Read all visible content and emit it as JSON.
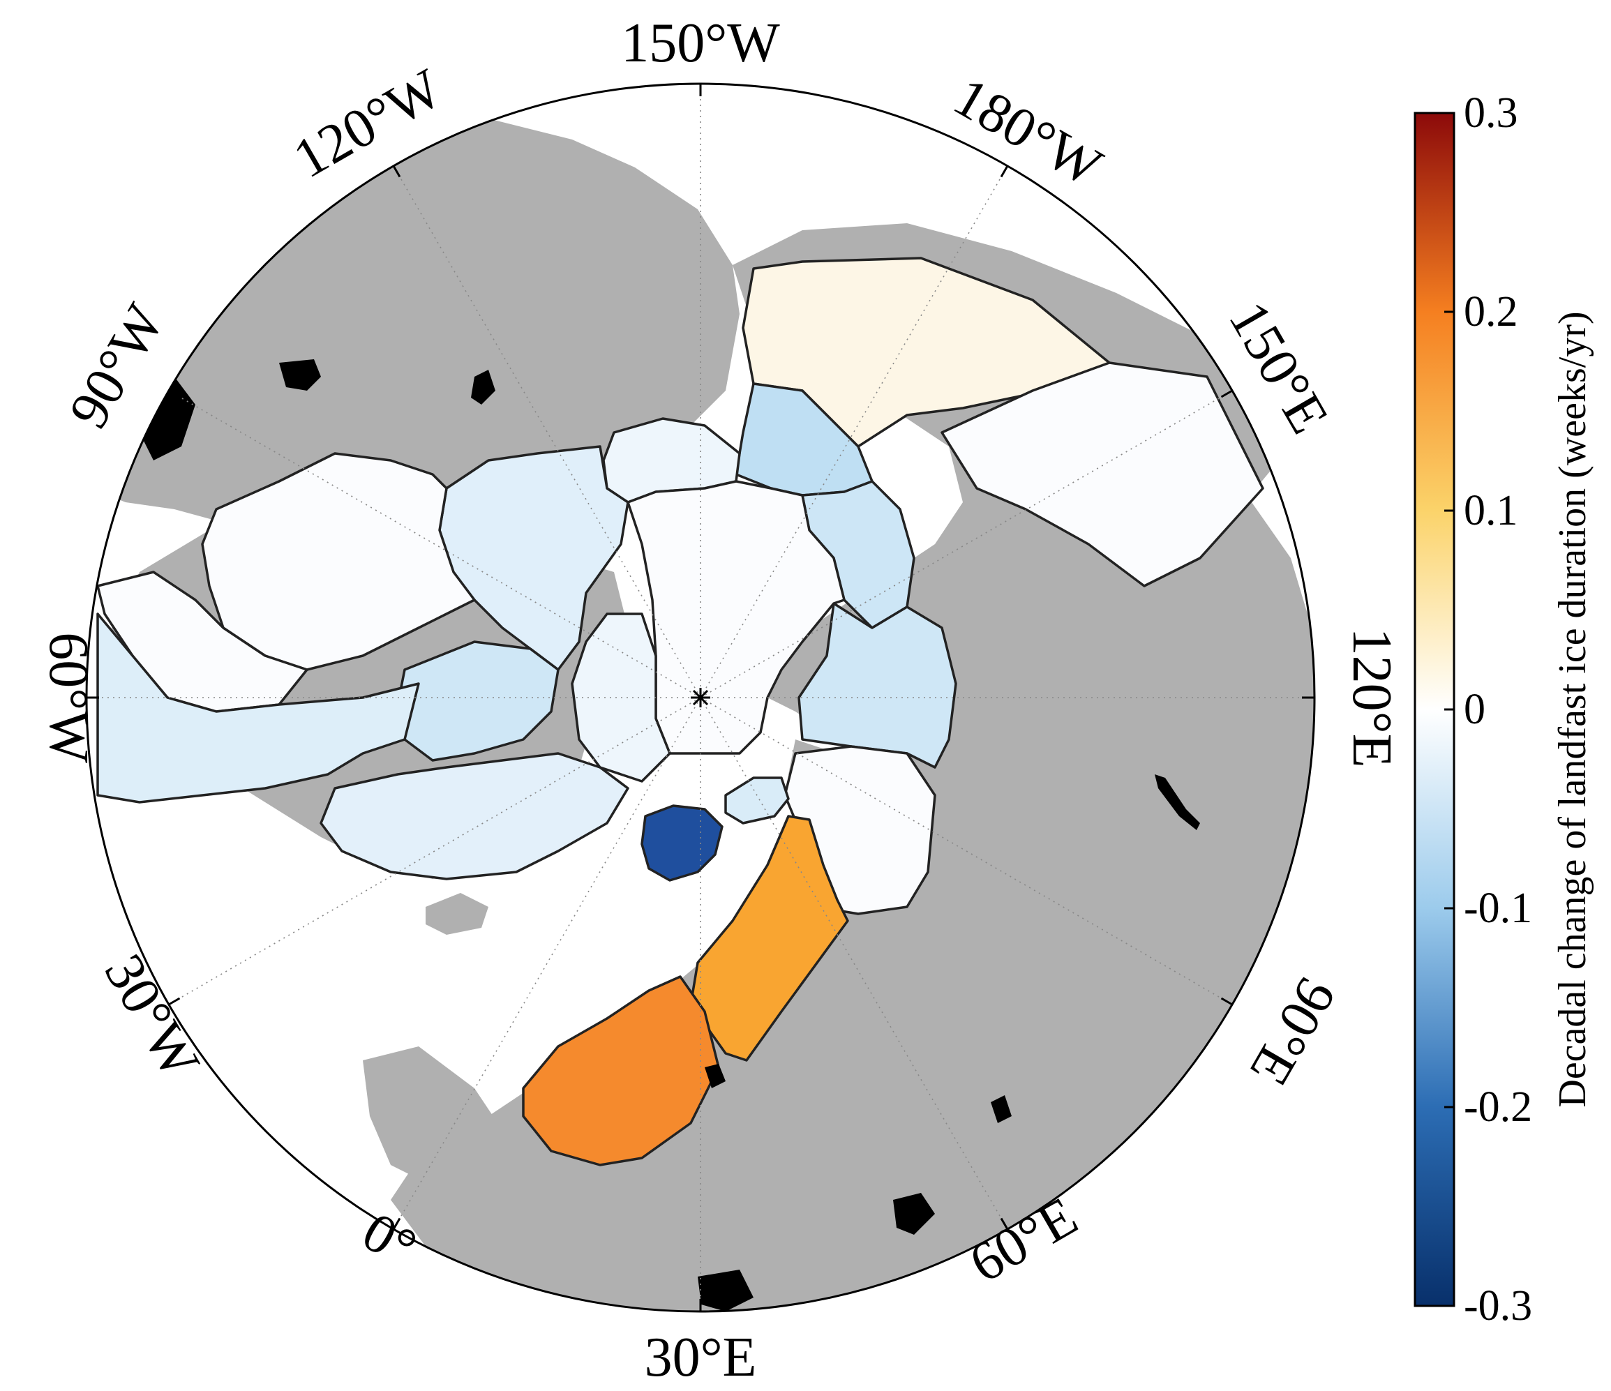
{
  "map": {
    "projection": "north-polar-stereographic",
    "longitude_labels": [
      {
        "key": "lbl_150w",
        "text": "150°W"
      },
      {
        "key": "lbl_180w",
        "text": "180°W"
      },
      {
        "key": "lbl_150e",
        "text": "150°E"
      },
      {
        "key": "lbl_120e",
        "text": "120°E"
      },
      {
        "key": "lbl_90e",
        "text": "90°E"
      },
      {
        "key": "lbl_60e",
        "text": "60°E"
      },
      {
        "key": "lbl_30e",
        "text": "30°E"
      },
      {
        "key": "lbl_0",
        "text": "0°"
      },
      {
        "key": "lbl_30w",
        "text": "30°W"
      },
      {
        "key": "lbl_60w",
        "text": "60°W"
      },
      {
        "key": "lbl_90w",
        "text": "90°W"
      },
      {
        "key": "lbl_120w",
        "text": "120°W"
      }
    ],
    "colors": {
      "land": "#b0b0b0",
      "ocean": "#ffffff",
      "lakes": "#000000",
      "region_outline": "#222222"
    },
    "regions": [
      {
        "id": "east-siberian-sea-north",
        "value": 0.01,
        "color": "#fdf6e6"
      },
      {
        "id": "chukchi-beaufort-west",
        "value": -0.01,
        "color": "#fbfcfe"
      },
      {
        "id": "north-of-alaska",
        "value": -0.03,
        "color": "#eef6fc"
      },
      {
        "id": "east-siberian-sea",
        "value": -0.1,
        "color": "#bfdff3"
      },
      {
        "id": "laptev-sea",
        "value": -0.08,
        "color": "#cde6f6"
      },
      {
        "id": "kara-sea",
        "value": -0.08,
        "color": "#cfe7f6"
      },
      {
        "id": "barents-sea",
        "value": -0.01,
        "color": "#fbfcfe"
      },
      {
        "id": "franz-josef-land",
        "value": -0.07,
        "color": "#d9ecf8"
      },
      {
        "id": "svalbard",
        "value": -0.27,
        "color": "#1f4f9e"
      },
      {
        "id": "white-sea",
        "value": 0.16,
        "color": "#f9a531"
      },
      {
        "id": "baltic-sea",
        "value": 0.2,
        "color": "#f58a2d"
      },
      {
        "id": "canadian-archipelago",
        "value": -0.06,
        "color": "#e0effa"
      },
      {
        "id": "hudson-bay-west",
        "value": -0.01,
        "color": "#fbfcfe"
      },
      {
        "id": "baffin-bay",
        "value": -0.08,
        "color": "#cfe7f6"
      },
      {
        "id": "labrador-sea",
        "value": -0.06,
        "color": "#ddeef9"
      },
      {
        "id": "greenland-west",
        "value": -0.05,
        "color": "#e3f0fa"
      },
      {
        "id": "greenland-east",
        "value": -0.03,
        "color": "#eef6fc"
      },
      {
        "id": "beaufort-sea",
        "value": -0.01,
        "color": "#fbfcfe"
      },
      {
        "id": "bering-chukotka",
        "value": -0.01,
        "color": "#fbfcfe"
      }
    ]
  },
  "colorbar": {
    "title": "Decadal change of landfast ice duration (weeks/yr)",
    "min": -0.3,
    "max": 0.3,
    "ticks": [
      {
        "value": 0.3,
        "label": "0.3"
      },
      {
        "value": 0.2,
        "label": "0.2"
      },
      {
        "value": 0.1,
        "label": "0.1"
      },
      {
        "value": 0,
        "label": "0"
      },
      {
        "value": -0.1,
        "label": "-0.1"
      },
      {
        "value": -0.2,
        "label": "-0.2"
      },
      {
        "value": -0.3,
        "label": "-0.3"
      }
    ],
    "stops": [
      {
        "value": -0.3,
        "color": "#08306b"
      },
      {
        "value": -0.2,
        "color": "#2c6db4"
      },
      {
        "value": -0.1,
        "color": "#9ccbec"
      },
      {
        "value": 0,
        "color": "#ffffff"
      },
      {
        "value": 0.1,
        "color": "#fbd36a"
      },
      {
        "value": 0.2,
        "color": "#f57f20"
      },
      {
        "value": 0.3,
        "color": "#8c0a0a"
      }
    ]
  }
}
